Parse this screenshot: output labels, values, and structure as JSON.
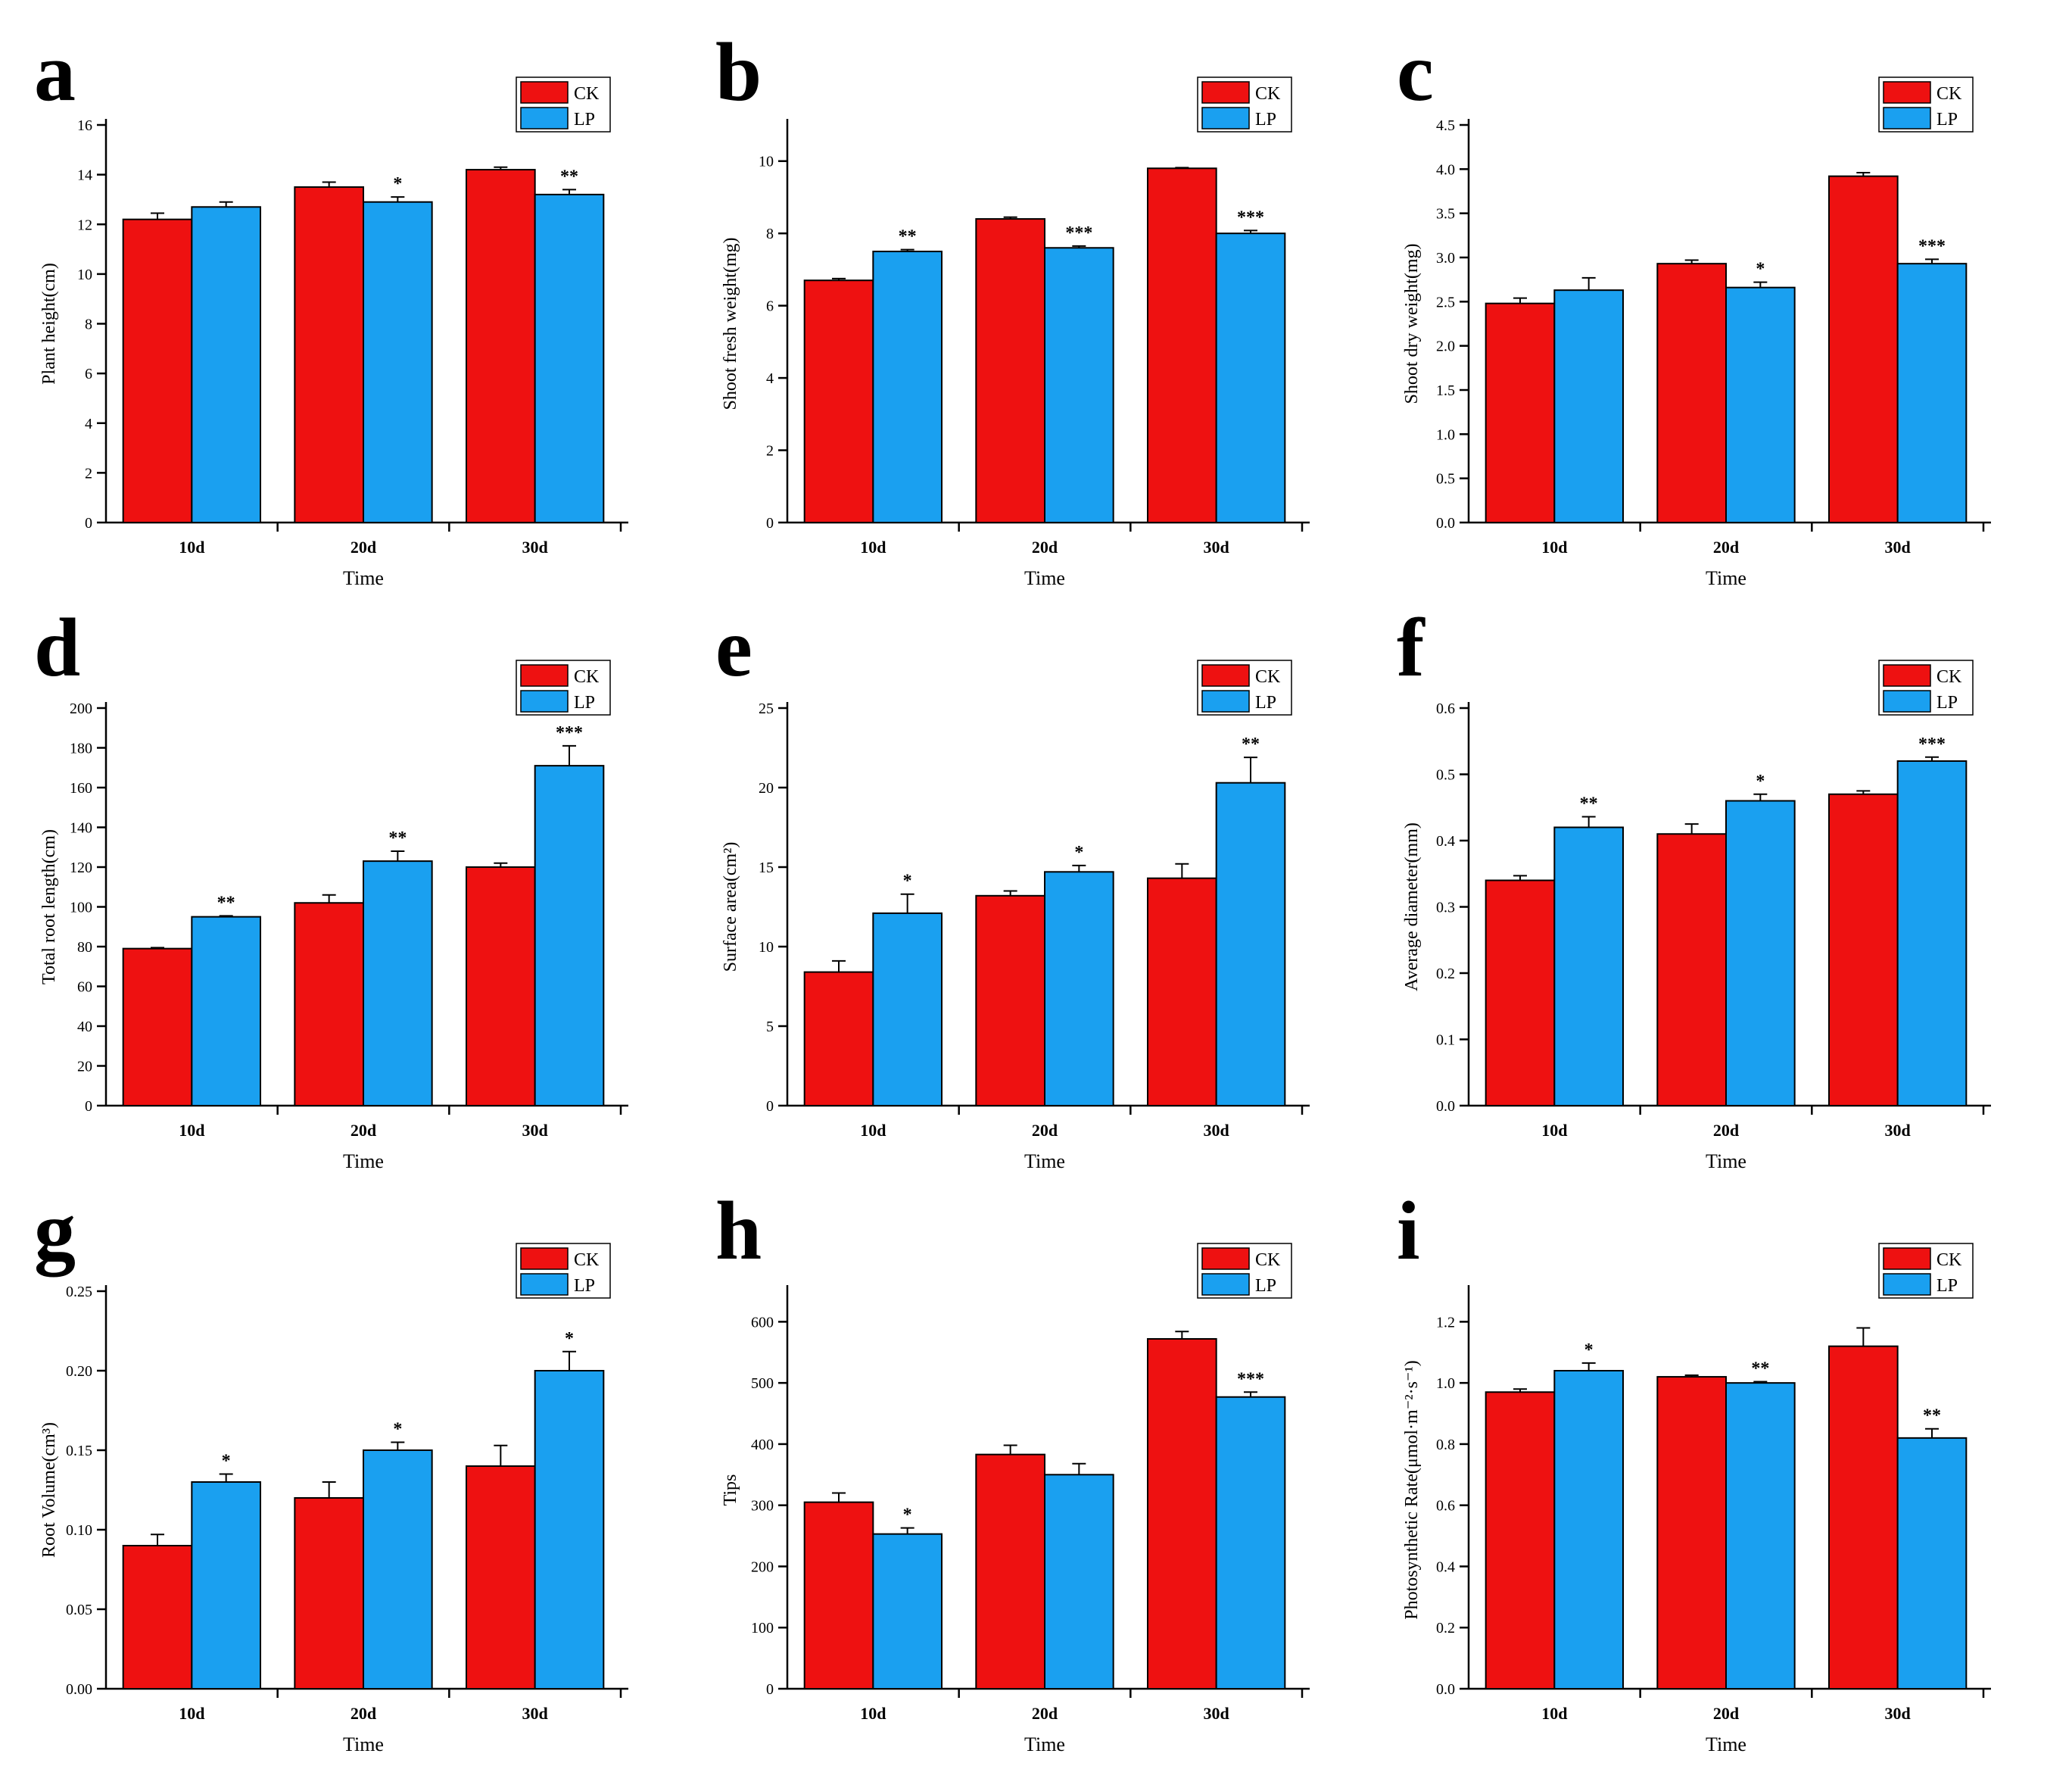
{
  "colors": {
    "ck": "#ee1111",
    "lp": "#1aa0f0",
    "axis": "#000000"
  },
  "chart_data": [
    {
      "id": "a",
      "letter": "a",
      "type": "bar",
      "categories": [
        "10d",
        "20d",
        "30d"
      ],
      "xlabel": "Time",
      "ylabel": "Plant height(cm)",
      "ylim": [
        0,
        16
      ],
      "yticks": [
        0,
        2,
        4,
        6,
        8,
        10,
        12,
        14,
        16
      ],
      "ytick_labels": [
        "0",
        "2",
        "4",
        "6",
        "8",
        "10",
        "12",
        "14",
        "16"
      ],
      "legend": [
        "CK",
        "LP"
      ],
      "series": [
        {
          "name": "CK",
          "values": [
            12.2,
            13.5,
            14.2
          ],
          "errors": [
            0.25,
            0.2,
            0.1
          ],
          "sig": [
            "",
            "",
            ""
          ]
        },
        {
          "name": "LP",
          "values": [
            12.7,
            12.9,
            13.2
          ],
          "errors": [
            0.2,
            0.2,
            0.2
          ],
          "sig": [
            "",
            "*",
            "**"
          ]
        }
      ]
    },
    {
      "id": "b",
      "letter": "b",
      "type": "bar",
      "categories": [
        "10d",
        "20d",
        "30d"
      ],
      "xlabel": "Time",
      "ylabel": "Shoot fresh weight(mg)",
      "ylim": [
        0,
        11
      ],
      "yticks": [
        0,
        2,
        4,
        6,
        8,
        10
      ],
      "ytick_labels": [
        "0",
        "2",
        "4",
        "6",
        "8",
        "10"
      ],
      "legend": [
        "CK",
        "LP"
      ],
      "series": [
        {
          "name": "CK",
          "values": [
            6.7,
            8.4,
            9.8
          ],
          "errors": [
            0.05,
            0.05,
            0.02
          ],
          "sig": [
            "",
            "",
            ""
          ]
        },
        {
          "name": "LP",
          "values": [
            7.5,
            7.6,
            8.0
          ],
          "errors": [
            0.05,
            0.05,
            0.08
          ],
          "sig": [
            "**",
            "***",
            "***"
          ]
        }
      ]
    },
    {
      "id": "c",
      "letter": "c",
      "type": "bar",
      "categories": [
        "10d",
        "20d",
        "30d"
      ],
      "xlabel": "Time",
      "ylabel": "Shoot dry weight(mg)",
      "ylim": [
        0,
        4.5
      ],
      "yticks": [
        0,
        0.5,
        1,
        1.5,
        2,
        2.5,
        3,
        3.5,
        4,
        4.5
      ],
      "ytick_labels": [
        "0.0",
        "0.5",
        "1.0",
        "1.5",
        "2.0",
        "2.5",
        "3.0",
        "3.5",
        "4.0",
        "4.5"
      ],
      "legend": [
        "CK",
        "LP"
      ],
      "series": [
        {
          "name": "CK",
          "values": [
            2.48,
            2.93,
            3.92
          ],
          "errors": [
            0.06,
            0.04,
            0.04
          ],
          "sig": [
            "",
            "",
            ""
          ]
        },
        {
          "name": "LP",
          "values": [
            2.63,
            2.66,
            2.93
          ],
          "errors": [
            0.14,
            0.06,
            0.05
          ],
          "sig": [
            "",
            "*",
            "***"
          ]
        }
      ]
    },
    {
      "id": "d",
      "letter": "d",
      "type": "bar",
      "categories": [
        "10d",
        "20d",
        "30d"
      ],
      "xlabel": "Time",
      "ylabel": "Total root length(cm)",
      "ylim": [
        0,
        200
      ],
      "yticks": [
        0,
        20,
        40,
        60,
        80,
        100,
        120,
        140,
        160,
        180,
        200
      ],
      "ytick_labels": [
        "0",
        "20",
        "40",
        "60",
        "80",
        "100",
        "120",
        "140",
        "160",
        "180",
        "200"
      ],
      "legend": [
        "CK",
        "LP"
      ],
      "series": [
        {
          "name": "CK",
          "values": [
            79,
            102,
            120
          ],
          "errors": [
            0.5,
            4,
            2
          ],
          "sig": [
            "",
            "",
            ""
          ]
        },
        {
          "name": "LP",
          "values": [
            95,
            123,
            171
          ],
          "errors": [
            0.5,
            5,
            10
          ],
          "sig": [
            "**",
            "**",
            "***"
          ]
        }
      ]
    },
    {
      "id": "e",
      "letter": "e",
      "type": "bar",
      "categories": [
        "10d",
        "20d",
        "30d"
      ],
      "xlabel": "Time",
      "ylabel": "Surface area(cm²)",
      "ylim": [
        0,
        25
      ],
      "yticks": [
        0,
        5,
        10,
        15,
        20,
        25
      ],
      "ytick_labels": [
        "0",
        "5",
        "10",
        "15",
        "20",
        "25"
      ],
      "legend": [
        "CK",
        "LP"
      ],
      "series": [
        {
          "name": "CK",
          "values": [
            8.4,
            13.2,
            14.3
          ],
          "errors": [
            0.7,
            0.3,
            0.9
          ],
          "sig": [
            "",
            "",
            ""
          ]
        },
        {
          "name": "LP",
          "values": [
            12.1,
            14.7,
            20.3
          ],
          "errors": [
            1.2,
            0.4,
            1.6
          ],
          "sig": [
            "*",
            "*",
            "**"
          ]
        }
      ]
    },
    {
      "id": "f",
      "letter": "f",
      "type": "bar",
      "categories": [
        "10d",
        "20d",
        "30d"
      ],
      "xlabel": "Time",
      "ylabel": "Average diameter(mm)",
      "ylim": [
        0,
        0.6
      ],
      "yticks": [
        0,
        0.1,
        0.2,
        0.3,
        0.4,
        0.5,
        0.6
      ],
      "ytick_labels": [
        "0.0",
        "0.1",
        "0.2",
        "0.3",
        "0.4",
        "0.5",
        "0.6"
      ],
      "legend": [
        "CK",
        "LP"
      ],
      "series": [
        {
          "name": "CK",
          "values": [
            0.34,
            0.41,
            0.47
          ],
          "errors": [
            0.007,
            0.015,
            0.005
          ],
          "sig": [
            "",
            "",
            ""
          ]
        },
        {
          "name": "LP",
          "values": [
            0.42,
            0.46,
            0.52
          ],
          "errors": [
            0.016,
            0.01,
            0.006
          ],
          "sig": [
            "**",
            "*",
            "***"
          ]
        }
      ]
    },
    {
      "id": "g",
      "letter": "g",
      "type": "bar",
      "categories": [
        "10d",
        "20d",
        "30d"
      ],
      "xlabel": "Time",
      "ylabel": "Root Volume(cm³)",
      "ylim": [
        0,
        0.25
      ],
      "yticks": [
        0,
        0.05,
        0.1,
        0.15,
        0.2,
        0.25
      ],
      "ytick_labels": [
        "0.00",
        "0.05",
        "0.10",
        "0.15",
        "0.20",
        "0.25"
      ],
      "legend": [
        "CK",
        "LP"
      ],
      "series": [
        {
          "name": "CK",
          "values": [
            0.09,
            0.12,
            0.14
          ],
          "errors": [
            0.007,
            0.01,
            0.013
          ],
          "sig": [
            "",
            "",
            ""
          ]
        },
        {
          "name": "LP",
          "values": [
            0.13,
            0.15,
            0.2
          ],
          "errors": [
            0.005,
            0.005,
            0.012
          ],
          "sig": [
            "*",
            "*",
            "*"
          ]
        }
      ]
    },
    {
      "id": "h",
      "letter": "h",
      "type": "bar",
      "categories": [
        "10d",
        "20d",
        "30d"
      ],
      "xlabel": "Time",
      "ylabel": "Tips",
      "ylim": [
        0,
        650
      ],
      "yticks": [
        0,
        100,
        200,
        300,
        400,
        500,
        600
      ],
      "ytick_labels": [
        "0",
        "100",
        "200",
        "300",
        "400",
        "500",
        "600"
      ],
      "legend": [
        "CK",
        "LP"
      ],
      "series": [
        {
          "name": "CK",
          "values": [
            305,
            383,
            572
          ],
          "errors": [
            15,
            15,
            12
          ],
          "sig": [
            "",
            "",
            ""
          ]
        },
        {
          "name": "LP",
          "values": [
            253,
            350,
            477
          ],
          "errors": [
            10,
            18,
            8
          ],
          "sig": [
            "*",
            "",
            "***"
          ]
        }
      ]
    },
    {
      "id": "i",
      "letter": "i",
      "type": "bar",
      "categories": [
        "10d",
        "20d",
        "30d"
      ],
      "xlabel": "Time",
      "ylabel": "Photosynthetic Rate(μmol·m⁻²·s⁻¹)",
      "ylim": [
        0,
        1.3
      ],
      "yticks": [
        0,
        0.2,
        0.4,
        0.6,
        0.8,
        1.0,
        1.2
      ],
      "ytick_labels": [
        "0.0",
        "0.2",
        "0.4",
        "0.6",
        "0.8",
        "1.0",
        "1.2"
      ],
      "legend": [
        "CK",
        "LP"
      ],
      "series": [
        {
          "name": "CK",
          "values": [
            0.97,
            1.02,
            1.12
          ],
          "errors": [
            0.01,
            0.005,
            0.06
          ],
          "sig": [
            "",
            "",
            ""
          ]
        },
        {
          "name": "LP",
          "values": [
            1.04,
            1.0,
            0.82
          ],
          "errors": [
            0.025,
            0.004,
            0.03
          ],
          "sig": [
            "*",
            "**",
            "**"
          ]
        }
      ]
    }
  ]
}
